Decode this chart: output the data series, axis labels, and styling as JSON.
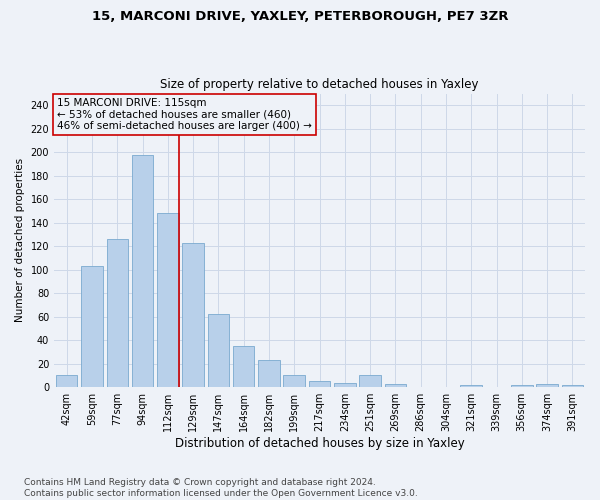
{
  "title": "15, MARCONI DRIVE, YAXLEY, PETERBOROUGH, PE7 3ZR",
  "subtitle": "Size of property relative to detached houses in Yaxley",
  "xlabel": "Distribution of detached houses by size in Yaxley",
  "ylabel": "Number of detached properties",
  "categories": [
    "42sqm",
    "59sqm",
    "77sqm",
    "94sqm",
    "112sqm",
    "129sqm",
    "147sqm",
    "164sqm",
    "182sqm",
    "199sqm",
    "217sqm",
    "234sqm",
    "251sqm",
    "269sqm",
    "286sqm",
    "304sqm",
    "321sqm",
    "339sqm",
    "356sqm",
    "374sqm",
    "391sqm"
  ],
  "values": [
    10,
    103,
    126,
    198,
    148,
    123,
    62,
    35,
    23,
    10,
    5,
    4,
    10,
    3,
    0,
    0,
    2,
    0,
    2,
    3,
    2
  ],
  "bar_color": "#b8d0ea",
  "bar_edge_color": "#7aaacf",
  "grid_color": "#cdd8e8",
  "background_color": "#eef2f8",
  "vline_x_index": 4,
  "vline_color": "#cc0000",
  "annotation_line1": "15 MARCONI DRIVE: 115sqm",
  "annotation_line2": "← 53% of detached houses are smaller (460)",
  "annotation_line3": "46% of semi-detached houses are larger (400) →",
  "annotation_box_edgecolor": "#cc0000",
  "ylim": [
    0,
    250
  ],
  "yticks": [
    0,
    20,
    40,
    60,
    80,
    100,
    120,
    140,
    160,
    180,
    200,
    220,
    240
  ],
  "footnote": "Contains HM Land Registry data © Crown copyright and database right 2024.\nContains public sector information licensed under the Open Government Licence v3.0.",
  "title_fontsize": 9.5,
  "subtitle_fontsize": 8.5,
  "xlabel_fontsize": 8.5,
  "ylabel_fontsize": 7.5,
  "tick_fontsize": 7,
  "annotation_fontsize": 7.5,
  "footnote_fontsize": 6.5
}
